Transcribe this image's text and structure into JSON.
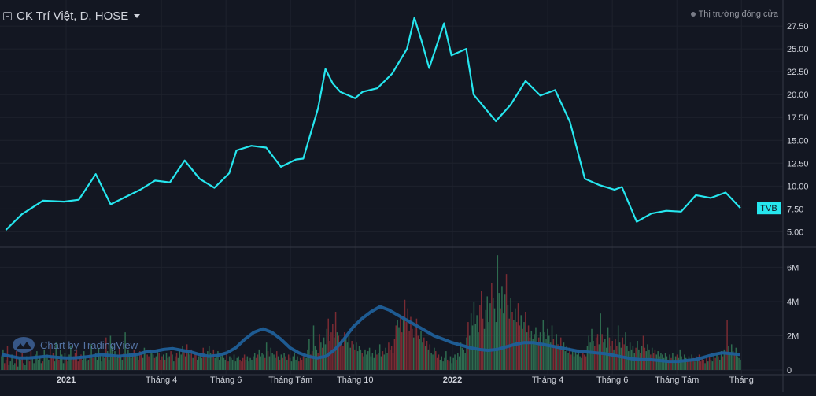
{
  "header": {
    "title": "CK Trí Việt, D, HOSE",
    "market_status": "Thị trường đóng cửa"
  },
  "watermark": {
    "text": "Chart by TradingView"
  },
  "colors": {
    "background": "#131722",
    "price_line": "#26e6ee",
    "volume_up": "#2e6b4f",
    "volume_down": "#7a2b33",
    "volume_ma": "#1f5f99",
    "grid": "#1e222d",
    "axis_text": "#d1d4dc"
  },
  "chart_data": {
    "type": "line",
    "symbol": "TVB",
    "x_axis_labels": [
      "2021",
      "Tháng 4",
      "Tháng 6",
      "Tháng Tám",
      "Tháng 10",
      "2022",
      "Tháng 4",
      "Tháng 6",
      "Tháng Tám",
      "Tháng"
    ],
    "price_axis": {
      "ticks": [
        "27.50",
        "25.00",
        "22.50",
        "20.00",
        "17.50",
        "15.00",
        "12.50",
        "10.00",
        "7.50",
        "5.00"
      ],
      "range": [
        4.0,
        28.8
      ]
    },
    "volume_axis": {
      "ticks": [
        "6M",
        "4M",
        "2M",
        "0"
      ],
      "range": [
        0,
        6.8
      ]
    },
    "last_price_label": "TVB",
    "price_series": {
      "name": "TVB",
      "dates": [
        "2020-11-05",
        "2020-11-20",
        "2020-12-10",
        "2020-12-30",
        "2021-01-13",
        "2021-01-29",
        "2021-02-12",
        "2021-02-26",
        "2021-03-12",
        "2021-03-26",
        "2021-04-09",
        "2021-04-23",
        "2021-05-07",
        "2021-05-21",
        "2021-06-04",
        "2021-06-11",
        "2021-06-25",
        "2021-07-09",
        "2021-07-23",
        "2021-08-06",
        "2021-08-13",
        "2021-08-27",
        "2021-09-03",
        "2021-09-10",
        "2021-09-17",
        "2021-10-01",
        "2021-10-08",
        "2021-10-22",
        "2021-11-05",
        "2021-11-19",
        "2021-11-26",
        "2021-12-03",
        "2021-12-10",
        "2021-12-24",
        "2021-12-31",
        "2022-01-14",
        "2022-01-21",
        "2022-02-11",
        "2022-02-25",
        "2022-03-11",
        "2022-03-25",
        "2022-04-08",
        "2022-04-22",
        "2022-05-06",
        "2022-05-20",
        "2022-06-03",
        "2022-06-10",
        "2022-06-24",
        "2022-07-08",
        "2022-07-22",
        "2022-08-05",
        "2022-08-19",
        "2022-09-02",
        "2022-09-16",
        "2022-09-30"
      ],
      "values": [
        5.2,
        6.9,
        8.4,
        8.3,
        8.5,
        11.3,
        8.0,
        8.8,
        9.6,
        10.6,
        10.4,
        12.8,
        10.8,
        9.8,
        11.4,
        13.9,
        14.4,
        14.2,
        12.1,
        12.9,
        13.0,
        18.5,
        22.8,
        21.2,
        20.3,
        19.6,
        20.3,
        20.7,
        22.3,
        25.0,
        28.4,
        25.8,
        22.9,
        27.8,
        24.3,
        25.0,
        20.0,
        17.1,
        18.9,
        21.5,
        19.9,
        20.5,
        17.0,
        10.8,
        10.1,
        9.6,
        9.9,
        6.1,
        7.0,
        7.3,
        7.2,
        9.0,
        8.7,
        9.3,
        7.6
      ]
    },
    "volume_series": {
      "name": "Volume",
      "unit": "M",
      "values": [
        0.8,
        1.2,
        0.4,
        0.6,
        1.4,
        0.3,
        0.5,
        0.9,
        0.3,
        0.4,
        1.1,
        0.2,
        0.7,
        0.6,
        1.0,
        0.4,
        0.3,
        0.8,
        0.6,
        0.5,
        1.3,
        0.7,
        0.4,
        0.9,
        1.1,
        0.6,
        0.8,
        0.4,
        0.5,
        1.2,
        0.7,
        0.9,
        0.6,
        1.5,
        0.8,
        1.0,
        0.5,
        1.6,
        0.7,
        0.6,
        1.2,
        0.9,
        0.4,
        1.0,
        0.7,
        0.5,
        0.9,
        1.4,
        0.6,
        0.8,
        1.0,
        1.2,
        0.5,
        0.7,
        0.9,
        0.6,
        1.1,
        0.8,
        0.5,
        0.6,
        0.9,
        1.5,
        0.7,
        0.8,
        1.0,
        0.6,
        1.3,
        0.9,
        0.5,
        0.8,
        0.7,
        1.9,
        1.1,
        0.6,
        2.0,
        1.4,
        0.8,
        1.1,
        0.7,
        0.9,
        1.3,
        0.8,
        0.6,
        1.0,
        2.2,
        0.8,
        1.2,
        1.0,
        0.7,
        0.9,
        1.2,
        1.0,
        0.8,
        0.6,
        1.1,
        1.0,
        0.7,
        1.3,
        1.1,
        0.9,
        0.8,
        1.2,
        1.0,
        0.9,
        0.7,
        0.8,
        1.2,
        1.0,
        0.6,
        0.8,
        0.9,
        0.6,
        1.0,
        0.7,
        0.8,
        1.1,
        0.9,
        0.5,
        0.8,
        1.0,
        0.7,
        1.2,
        0.9,
        1.4,
        1.1,
        0.8,
        1.5,
        1.0,
        0.9,
        1.2,
        0.7,
        1.0,
        0.9,
        0.6,
        0.8,
        1.0,
        0.7,
        1.3,
        1.0,
        0.8,
        1.1,
        1.4,
        1.0,
        0.9,
        1.2,
        0.7,
        0.9,
        1.1,
        0.6,
        0.8,
        1.0,
        0.7,
        0.6,
        0.9,
        0.5,
        0.8,
        0.7,
        0.6,
        0.9,
        0.5,
        0.7,
        0.8,
        0.6,
        0.5,
        0.7,
        0.9,
        0.6,
        0.8,
        0.5,
        0.7,
        0.6,
        0.8,
        1.0,
        0.7,
        0.9,
        1.2,
        0.8,
        1.0,
        0.9,
        0.7,
        1.6,
        1.1,
        0.8,
        1.3,
        1.0,
        0.9,
        0.7,
        1.1,
        0.8,
        0.6,
        0.9,
        0.7,
        1.0,
        0.8,
        0.6,
        0.9,
        0.7,
        0.5,
        0.8,
        1.0,
        0.6,
        0.8,
        0.5,
        0.7,
        0.6,
        0.8,
        0.9,
        0.7,
        1.2,
        1.8,
        0.9,
        1.1,
        2.6,
        1.4,
        1.2,
        1.0,
        2.1,
        1.6,
        1.3,
        1.9,
        1.5,
        2.4,
        3.0,
        1.7,
        2.2,
        2.7,
        1.9,
        3.4,
        2.2,
        2.0,
        1.6,
        1.8,
        1.4,
        2.2,
        1.9,
        1.6,
        2.0,
        1.3,
        1.7,
        1.5,
        1.2,
        1.6,
        1.1,
        1.4,
        1.2,
        1.0,
        0.8,
        1.2,
        0.9,
        1.1,
        1.3,
        0.8,
        1.0,
        0.7,
        1.2,
        0.9,
        1.0,
        1.5,
        0.8,
        1.1,
        0.9,
        1.3,
        1.0,
        1.6,
        1.2,
        1.4,
        1.0,
        1.8,
        2.6,
        2.9,
        2.5,
        3.2,
        2.2,
        2.9,
        4.1,
        2.8,
        3.6,
        2.3,
        3.1,
        2.4,
        1.9,
        2.5,
        3.0,
        2.0,
        1.8,
        2.3,
        1.6,
        1.9,
        1.4,
        1.7,
        1.2,
        1.5,
        1.0,
        0.9,
        1.3,
        1.1,
        0.7,
        0.9,
        0.6,
        0.8,
        0.5,
        0.7,
        1.1,
        0.6,
        0.5,
        0.8,
        0.4,
        0.7,
        0.9,
        0.6,
        1.0,
        0.8,
        1.6,
        1.3,
        1.2,
        1.0,
        1.9,
        2.8,
        2.0,
        3.3,
        2.6,
        4.0,
        2.7,
        3.2,
        2.2,
        3.8,
        4.6,
        3.0,
        2.4,
        3.5,
        4.3,
        2.8,
        3.9,
        5.1,
        4.2,
        3.6,
        2.8,
        6.7,
        4.5,
        3.6,
        4.9,
        3.3,
        4.4,
        5.6,
        3.8,
        3.0,
        4.2,
        3.4,
        2.9,
        3.6,
        2.8,
        3.9,
        2.6,
        3.2,
        2.4,
        2.8,
        3.4,
        2.2,
        2.6,
        1.9,
        2.3,
        1.8,
        2.1,
        2.5,
        1.6,
        1.9,
        2.2,
        1.4,
        2.9,
        2.2,
        1.8,
        2.4,
        2.0,
        1.6,
        2.6,
        1.8,
        1.4,
        2.1,
        1.5,
        1.3,
        1.9,
        1.2,
        1.6,
        1.1,
        1.4,
        1.0,
        1.3,
        0.9,
        1.2,
        0.8,
        1.1,
        0.9,
        1.2,
        0.8,
        0.7,
        1.0,
        0.9,
        0.8,
        1.4,
        2.0,
        1.6,
        2.4,
        1.7,
        1.4,
        1.9,
        2.1,
        1.5,
        3.3,
        2.1,
        1.6,
        1.8,
        1.3,
        2.5,
        1.9,
        1.4,
        1.7,
        1.2,
        1.8,
        1.4,
        2.6,
        1.6,
        1.3,
        1.9,
        1.5,
        2.2,
        1.4,
        1.1,
        1.6,
        1.2,
        1.4,
        1.0,
        1.3,
        1.7,
        1.2,
        1.0,
        1.4,
        2.0,
        1.3,
        1.1,
        1.5,
        1.2,
        0.9,
        1.3,
        1.0,
        1.2,
        0.9,
        1.1,
        0.8,
        1.0,
        0.9,
        0.7,
        1.0,
        0.8,
        0.6,
        0.9,
        0.7,
        1.0,
        0.6,
        0.8,
        0.9,
        0.7,
        1.2,
        0.8,
        0.6,
        0.9,
        0.7,
        0.5,
        0.8,
        0.6,
        0.9,
        0.7,
        0.5,
        0.8,
        0.6,
        0.9,
        0.5,
        0.7,
        0.6,
        0.4,
        0.7,
        0.5,
        0.8,
        0.6,
        0.5,
        0.9,
        0.7,
        1.0,
        0.8,
        0.6,
        1.1,
        0.8,
        1.2,
        0.9,
        2.9,
        1.4,
        1.0,
        1.5,
        1.1,
        0.9,
        1.3,
        0.8,
        0.7,
        0.6
      ],
      "ma_values": [
        0.9,
        0.8,
        0.7,
        0.7,
        0.75,
        0.8,
        0.75,
        0.7,
        0.7,
        0.75,
        0.8,
        0.9,
        0.85,
        0.8,
        0.85,
        0.9,
        1.05,
        1.1,
        1.2,
        1.25,
        1.15,
        1.05,
        0.9,
        0.8,
        0.85,
        1.0,
        1.3,
        1.8,
        2.2,
        2.4,
        2.2,
        1.8,
        1.3,
        1.0,
        0.8,
        0.7,
        0.8,
        1.2,
        1.8,
        2.5,
        3.0,
        3.4,
        3.7,
        3.5,
        3.2,
        2.9,
        2.6,
        2.3,
        2.0,
        1.8,
        1.6,
        1.45,
        1.3,
        1.2,
        1.15,
        1.2,
        1.35,
        1.5,
        1.6,
        1.6,
        1.5,
        1.4,
        1.3,
        1.2,
        1.1,
        1.05,
        1.0,
        0.95,
        0.85,
        0.75,
        0.65,
        0.6,
        0.6,
        0.55,
        0.5,
        0.5,
        0.55,
        0.6,
        0.75,
        0.9,
        1.0,
        0.95,
        0.9
      ]
    }
  }
}
